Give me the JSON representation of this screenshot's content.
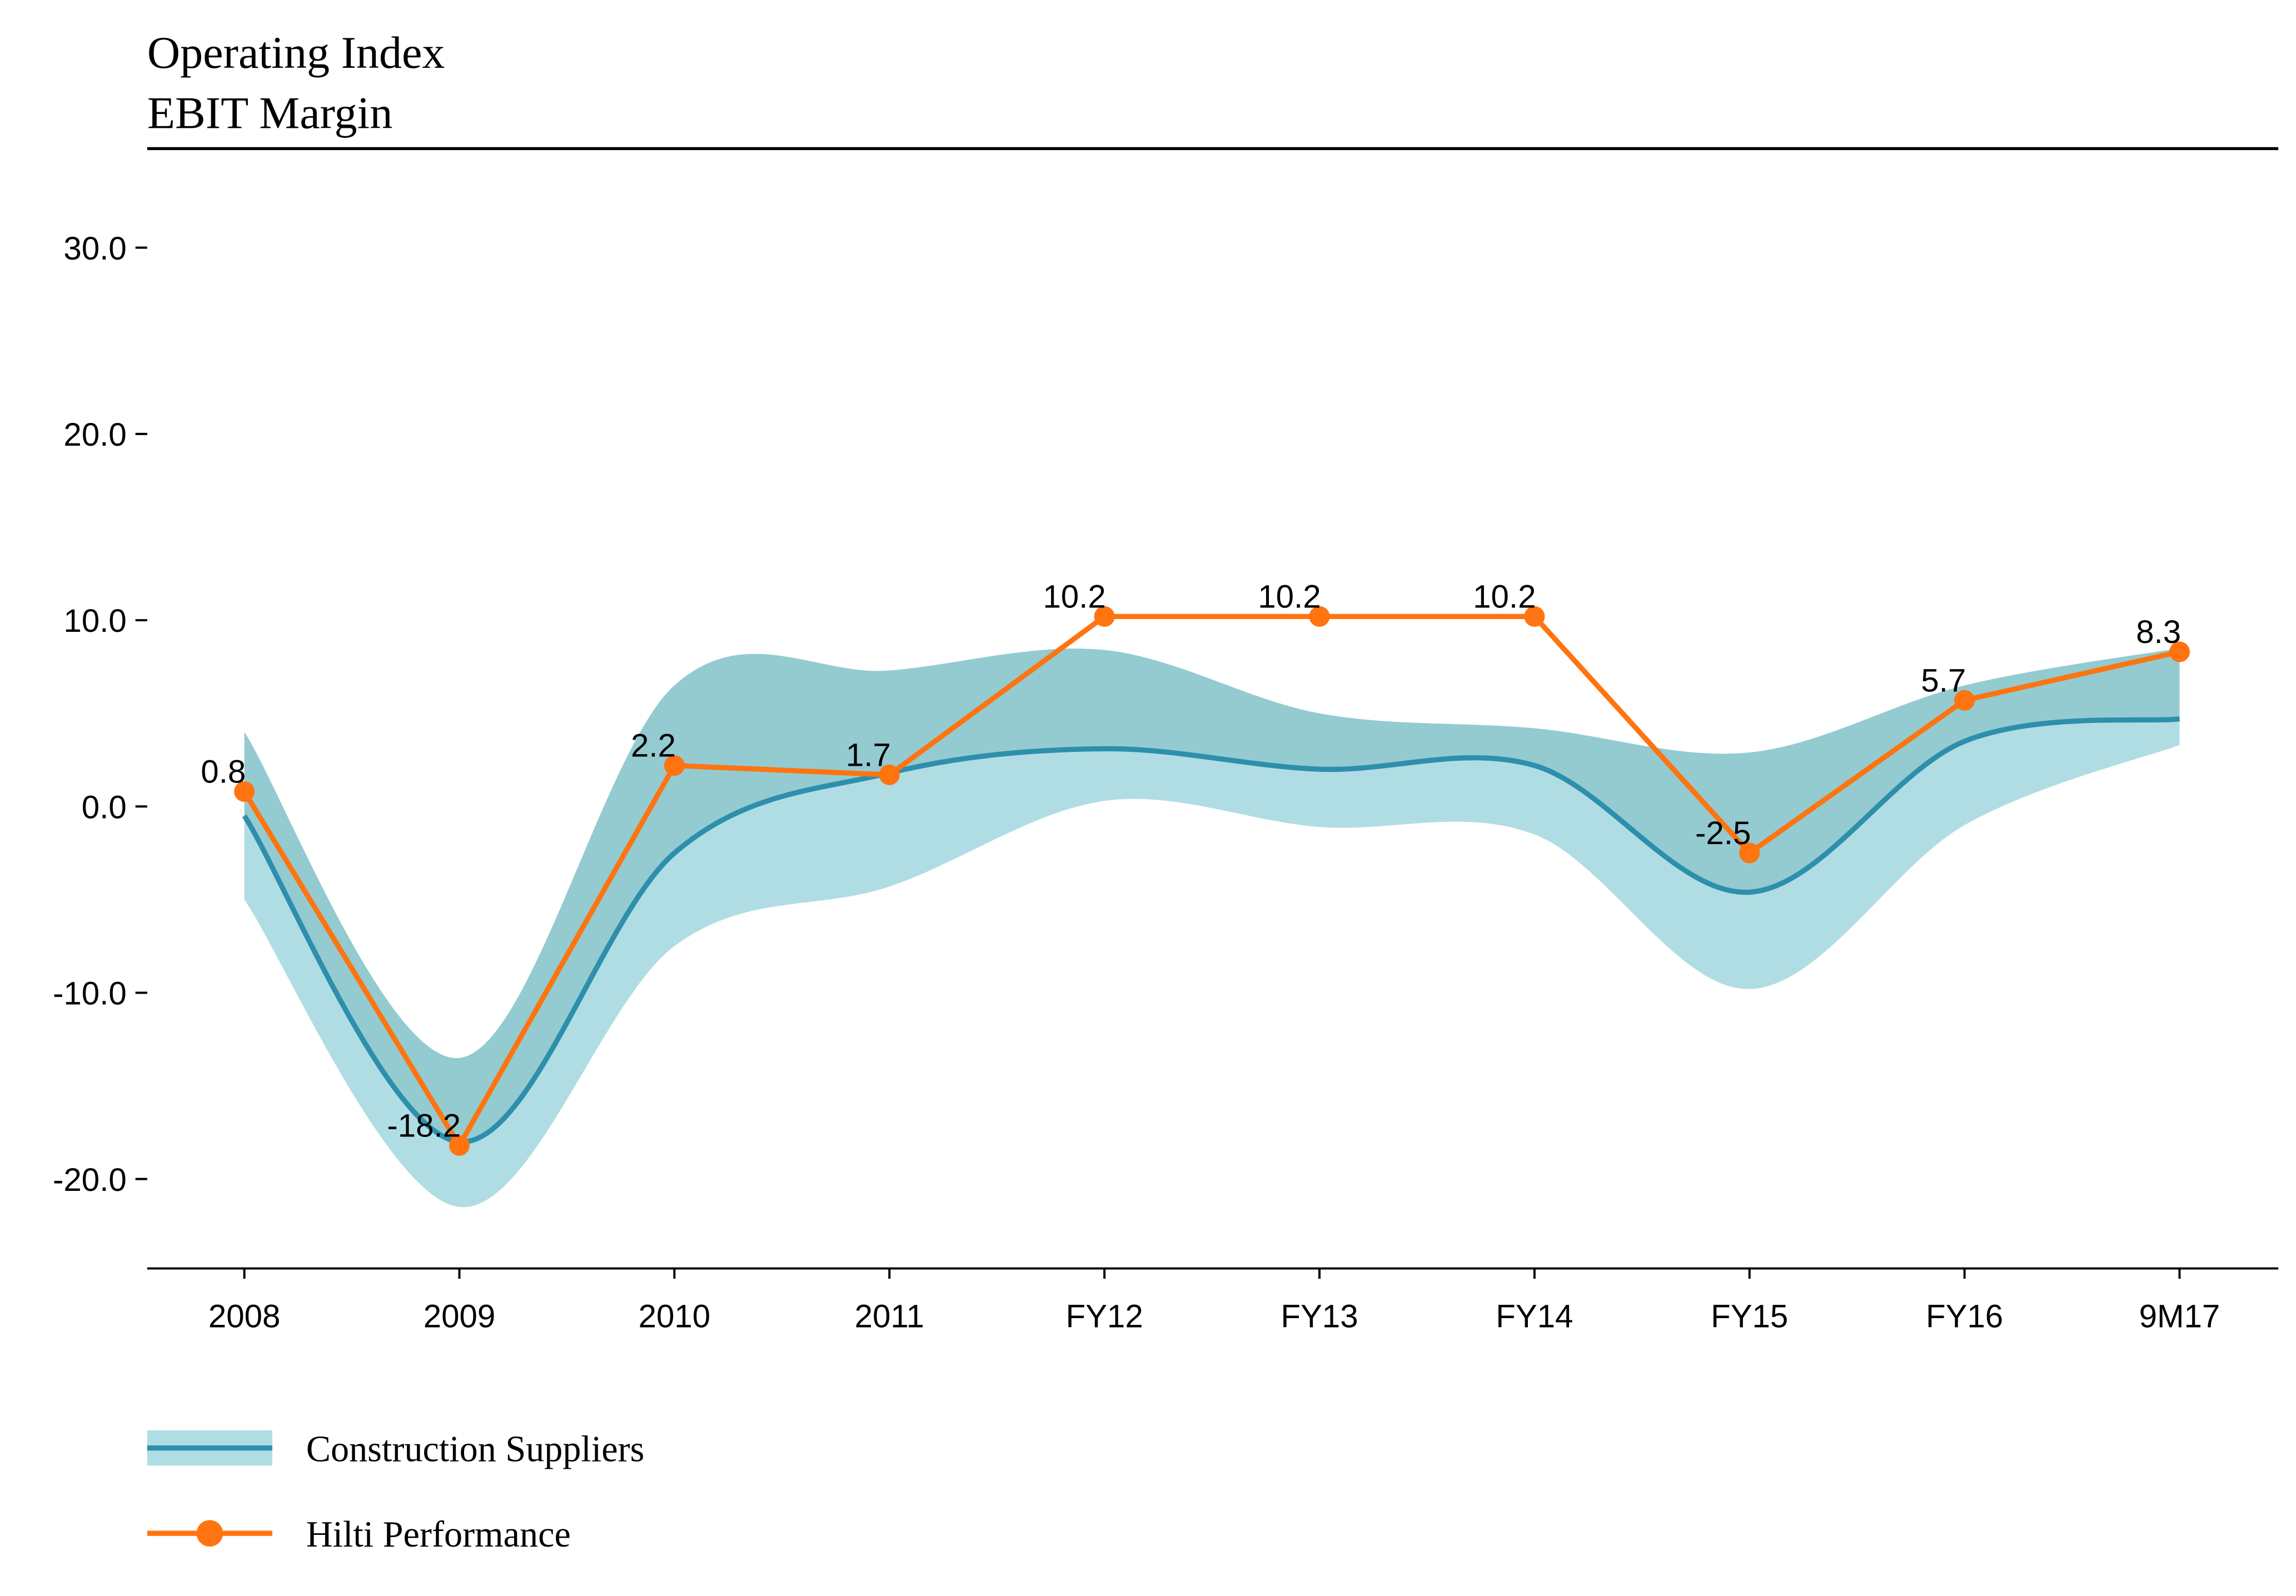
{
  "chart_data": {
    "type": "line",
    "title": "Operating Index",
    "subtitle": "EBIT Margin",
    "categories": [
      "2008",
      "2009",
      "2010",
      "2011",
      "FY12",
      "FY13",
      "FY14",
      "FY15",
      "FY16",
      "9M17"
    ],
    "ylim": [
      -24.8,
      35
    ],
    "yticks": [
      {
        "value": -20,
        "label": "-20.0"
      },
      {
        "value": -10,
        "label": "-10.0"
      },
      {
        "value": 0,
        "label": "0.0"
      },
      {
        "value": 10,
        "label": "10.0"
      },
      {
        "value": 20,
        "label": "20.0"
      },
      {
        "value": 30,
        "label": "30.0"
      }
    ],
    "series": [
      {
        "name": "Construction Suppliers",
        "color": "#2e8fad",
        "band_upper_color": "#93cbd1",
        "band_lower_color": "#b0dde3",
        "values": [
          -0.5,
          -18,
          -2.5,
          1.8,
          3.1,
          2.0,
          2.2,
          -4.6,
          3.5,
          4.7
        ],
        "upper": [
          4,
          -13.5,
          6.5,
          7.3,
          8.4,
          5,
          4.2,
          2.9,
          6.5,
          8.5
        ],
        "lower": [
          -5,
          -21.5,
          -7.5,
          -4.3,
          0.3,
          -1.1,
          -1.5,
          -9.8,
          -1,
          3.3
        ]
      },
      {
        "name": "Hilti Performance",
        "color": "#ff7410",
        "marker": "circle",
        "values": [
          0.8,
          -18.2,
          2.2,
          1.7,
          10.2,
          10.2,
          10.2,
          -2.5,
          5.7,
          8.3
        ]
      }
    ]
  }
}
